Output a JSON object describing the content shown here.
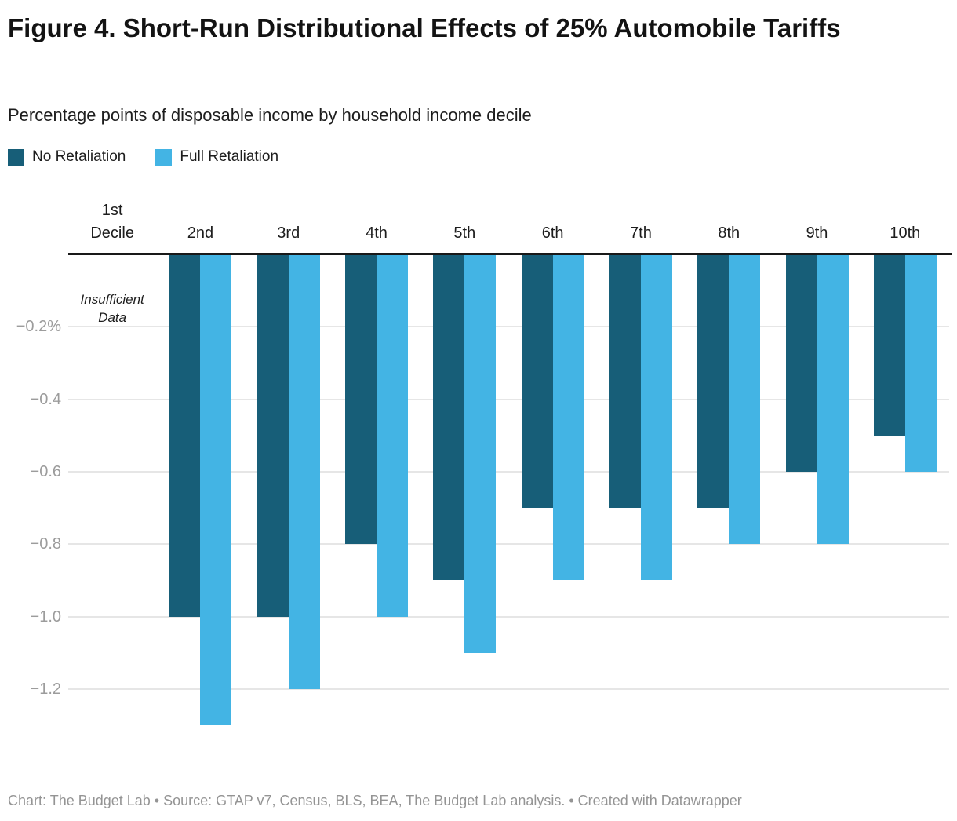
{
  "header": {
    "title": "Figure 4. Short-Run Distributional Effects of 25% Automobile Tariffs",
    "subtitle": "Percentage points of disposable income by household income decile"
  },
  "legend": {
    "items": [
      {
        "label": "No Retaliation",
        "color": "#175e78"
      },
      {
        "label": "Full Retaliation",
        "color": "#43b4e4"
      }
    ]
  },
  "chart_data": {
    "type": "bar",
    "title": "Figure 4. Short-Run Distributional Effects of 25% Automobile Tariffs",
    "subtitle": "Percentage points of disposable income by household income decile",
    "categories": [
      "1st\nDecile",
      "2nd",
      "3rd",
      "4th",
      "5th",
      "6th",
      "7th",
      "8th",
      "9th",
      "10th"
    ],
    "series": [
      {
        "name": "No Retaliation",
        "color": "#175e78",
        "values": [
          null,
          -1.0,
          -1.0,
          -0.8,
          -0.9,
          -0.7,
          -0.7,
          -0.7,
          -0.6,
          -0.5
        ]
      },
      {
        "name": "Full Retaliation",
        "color": "#43b4e4",
        "values": [
          null,
          -1.3,
          -1.2,
          -1.0,
          -1.1,
          -0.9,
          -0.9,
          -0.8,
          -0.8,
          -0.6
        ]
      }
    ],
    "yticks": [
      {
        "value": -0.2,
        "label": "−0.2%"
      },
      {
        "value": -0.4,
        "label": "−0.4"
      },
      {
        "value": -0.6,
        "label": "−0.6"
      },
      {
        "value": -0.8,
        "label": "−0.8"
      },
      {
        "value": -1.0,
        "label": "−1.0"
      },
      {
        "value": -1.2,
        "label": "−1.2"
      }
    ],
    "ylim": [
      -1.35,
      0
    ],
    "grid": true,
    "legend_position": "top-left",
    "annotations": [
      {
        "text": "Insufficient\nData",
        "category_index": 0
      }
    ]
  },
  "footer": {
    "credit": "Chart: The Budget Lab • Source: GTAP v7, Census, BLS, BEA, The Budget Lab analysis. • Created with Datawrapper"
  }
}
